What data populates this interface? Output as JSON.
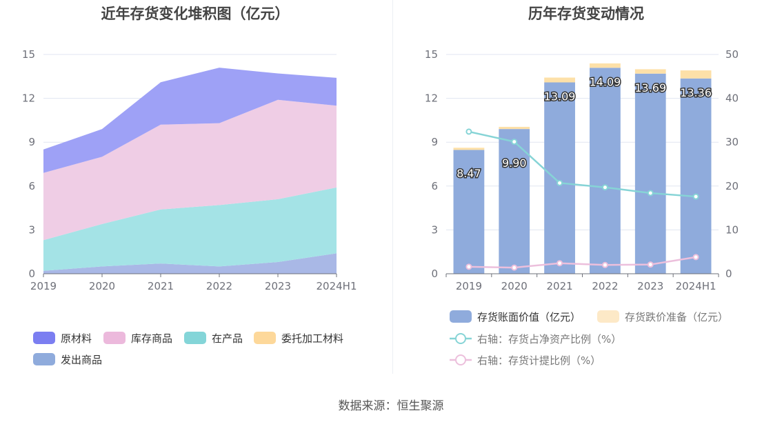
{
  "source_text": "数据来源：恒生聚源",
  "chart_data": [
    {
      "type": "area",
      "stacked": true,
      "title": "近年存货变化堆积图（亿元）",
      "categories": [
        "2019",
        "2020",
        "2021",
        "2022",
        "2023",
        "2024H1"
      ],
      "ylim": [
        0,
        15
      ],
      "yticks": [
        0,
        3,
        6,
        9,
        12,
        15
      ],
      "legend_position": "bottom",
      "series": [
        {
          "name": "发出商品",
          "color": "#a9b8e6",
          "values": [
            0.2,
            0.5,
            0.7,
            0.5,
            0.8,
            1.4
          ]
        },
        {
          "name": "委托加工材料",
          "color": "#fdd89a",
          "values": [
            0.0,
            0.0,
            0.0,
            0.0,
            0.0,
            0.0
          ]
        },
        {
          "name": "在产品",
          "color": "#a4e3e6",
          "values": [
            2.1,
            2.9,
            3.7,
            4.2,
            4.3,
            4.5
          ]
        },
        {
          "name": "库存商品",
          "color": "#efcde5",
          "values": [
            4.6,
            4.6,
            5.8,
            5.6,
            6.8,
            5.6
          ]
        },
        {
          "name": "原材料",
          "color": "#9ea1f6",
          "values": [
            1.6,
            1.9,
            2.9,
            3.8,
            1.8,
            1.9
          ]
        }
      ],
      "legend_items": [
        {
          "name": "原材料",
          "color": "#7b7ef1"
        },
        {
          "name": "库存商品",
          "color": "#ecb9dc"
        },
        {
          "name": "在产品",
          "color": "#84d5d8"
        },
        {
          "name": "委托加工材料",
          "color": "#fdd89a"
        },
        {
          "name": "发出商品",
          "color": "#8fabdc"
        }
      ]
    },
    {
      "type": "bar",
      "stacked": true,
      "title": "历年存货变动情况",
      "categories": [
        "2019",
        "2020",
        "2021",
        "2022",
        "2023",
        "2024H1"
      ],
      "ylim": [
        0,
        15
      ],
      "yticks": [
        0,
        3,
        6,
        9,
        12,
        15
      ],
      "y2lim": [
        0,
        50
      ],
      "y2ticks": [
        0,
        10,
        20,
        30,
        40,
        50
      ],
      "legend_position": "bottom",
      "series": [
        {
          "name": "存货账面价值（亿元）",
          "color": "#8fabdc",
          "values": [
            8.47,
            9.9,
            13.09,
            14.09,
            13.69,
            13.36
          ],
          "labels": [
            "8.47",
            "9.90",
            "13.09",
            "14.09",
            "13.69",
            "13.36"
          ]
        },
        {
          "name": "存货跌价准备（亿元）",
          "color": "#fde0a8",
          "values": [
            0.15,
            0.15,
            0.33,
            0.3,
            0.3,
            0.55
          ]
        }
      ],
      "line_series": [
        {
          "name": "右轴：存货占净资产比例（%）",
          "axis": "right",
          "color": "#86d4d6",
          "values": [
            32.4,
            30.1,
            20.7,
            19.7,
            18.4,
            17.6
          ]
        },
        {
          "name": "右轴：存货计提比例（%）",
          "axis": "right",
          "color": "#ecbfdc",
          "values": [
            1.6,
            1.4,
            2.4,
            2.0,
            2.1,
            3.8
          ]
        }
      ]
    }
  ]
}
